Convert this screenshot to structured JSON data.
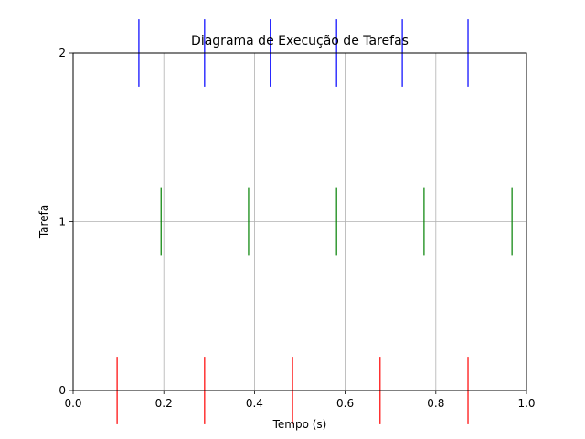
{
  "chart_data": {
    "type": "scatter",
    "title": "Diagrama de Execução de Tarefas",
    "xlabel": "Tempo (s)",
    "ylabel": "Tarefa",
    "xlim": [
      0,
      1
    ],
    "ylim": [
      0,
      2
    ],
    "xticks": [
      "0.0",
      "0.2",
      "0.4",
      "0.6",
      "0.8",
      "1.0"
    ],
    "yticks": [
      "0",
      "1",
      "2"
    ],
    "grid": true,
    "legend": "none",
    "series": [
      {
        "task": 0,
        "color": "#ff0000",
        "half_height": 0.2,
        "x": [
          0.097,
          0.29,
          0.484,
          0.677,
          0.871
        ]
      },
      {
        "task": 1,
        "color": "#008000",
        "half_height": 0.2,
        "x": [
          0.194,
          0.387,
          0.581,
          0.774,
          0.968
        ]
      },
      {
        "task": 2,
        "color": "#0000ff",
        "half_height": 0.2,
        "x": [
          0.145,
          0.29,
          0.435,
          0.581,
          0.726,
          0.871
        ]
      }
    ]
  }
}
